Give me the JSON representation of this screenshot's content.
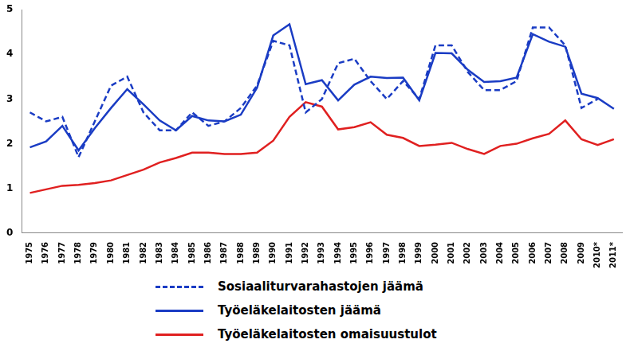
{
  "chart_data": {
    "type": "line",
    "categories": [
      "1975",
      "1976",
      "1977",
      "1978",
      "1979",
      "1980",
      "1981",
      "1982",
      "1983",
      "1984",
      "1985",
      "1986",
      "1987",
      "1988",
      "1989",
      "1990",
      "1991",
      "1992",
      "1993",
      "1994",
      "1995",
      "1996",
      "1997",
      "1998",
      "1999",
      "2000",
      "2001",
      "2002",
      "2003",
      "2004",
      "2005",
      "2006",
      "2007",
      "2008",
      "2009",
      "2010*",
      "2011*"
    ],
    "series": [
      {
        "name": "Sosiaaliturvarahastojen jäämä",
        "color": "#1a3cc4",
        "line_style": "dashed",
        "values": [
          2.7,
          2.5,
          2.6,
          1.7,
          2.5,
          3.3,
          3.5,
          2.7,
          2.3,
          2.3,
          2.7,
          2.4,
          2.5,
          2.8,
          3.3,
          4.3,
          4.2,
          2.7,
          3.0,
          3.8,
          3.9,
          3.4,
          3.0,
          3.4,
          3.0,
          4.2,
          4.2,
          3.6,
          3.2,
          3.2,
          3.4,
          4.6,
          4.6,
          4.2,
          2.8,
          3.0,
          null
        ]
      },
      {
        "name": "Työeläkelaitosten jäämä",
        "color": "#1a3cc4",
        "line_style": "solid",
        "values": [
          1.92,
          2.05,
          2.4,
          1.85,
          2.35,
          2.8,
          3.22,
          2.88,
          2.52,
          2.3,
          2.62,
          2.52,
          2.5,
          2.65,
          3.25,
          4.42,
          4.67,
          3.33,
          3.42,
          2.97,
          3.32,
          3.5,
          3.47,
          3.48,
          2.97,
          4.03,
          4.02,
          3.65,
          3.38,
          3.4,
          3.48,
          4.45,
          4.28,
          4.17,
          3.12,
          3.02,
          2.78
        ]
      },
      {
        "name": "Työeläkelaitosten omaisuustulot",
        "color": "#e02020",
        "line_style": "solid",
        "values": [
          0.9,
          0.98,
          1.06,
          1.08,
          1.12,
          1.18,
          1.3,
          1.42,
          1.58,
          1.68,
          1.8,
          1.8,
          1.77,
          1.77,
          1.8,
          2.07,
          2.6,
          2.93,
          2.83,
          2.32,
          2.37,
          2.48,
          2.2,
          2.13,
          1.95,
          1.98,
          2.02,
          1.88,
          1.77,
          1.95,
          2.0,
          2.12,
          2.22,
          2.52,
          2.1,
          1.97,
          2.1
        ]
      }
    ],
    "ylim": [
      0,
      5
    ],
    "yticks": [
      0,
      1,
      2,
      3,
      4,
      5
    ],
    "grid": false,
    "legend": "bottom"
  }
}
